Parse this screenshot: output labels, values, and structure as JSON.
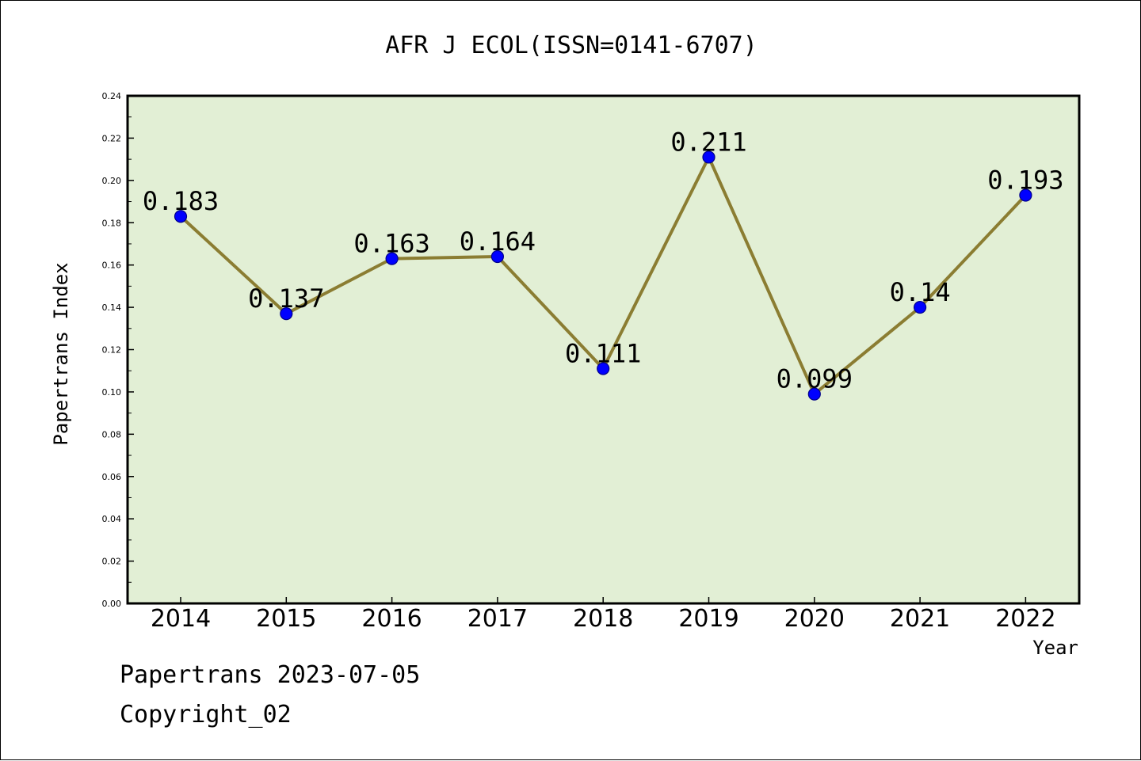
{
  "chart_data": {
    "type": "line",
    "title": "AFR J ECOL(ISSN=0141-6707)",
    "xlabel": "Year",
    "ylabel": "Papertrans Index",
    "categories": [
      "2014",
      "2015",
      "2016",
      "2017",
      "2018",
      "2019",
      "2020",
      "2021",
      "2022"
    ],
    "values": [
      0.183,
      0.137,
      0.163,
      0.164,
      0.111,
      0.211,
      0.099,
      0.14,
      0.193
    ],
    "data_labels": [
      "0.183",
      "0.137",
      "0.163",
      "0.164",
      "0.111",
      "0.211",
      "0.099",
      "0.14",
      "0.193"
    ],
    "ylim": [
      0,
      0.24
    ],
    "y_ticks": [
      "0.00",
      "0.02",
      "0.04",
      "0.06",
      "0.08",
      "0.10",
      "0.12",
      "0.14",
      "0.16",
      "0.18",
      "0.20",
      "0.22",
      "0.24"
    ],
    "grid": false,
    "colors": {
      "plot_background": "#e2efd5",
      "line": "#8b7d32",
      "marker": "#0000ff",
      "marker_edge": "#00008b"
    }
  },
  "footer": {
    "line1": "Papertrans 2023-07-05",
    "line2": "Copyright_02"
  }
}
